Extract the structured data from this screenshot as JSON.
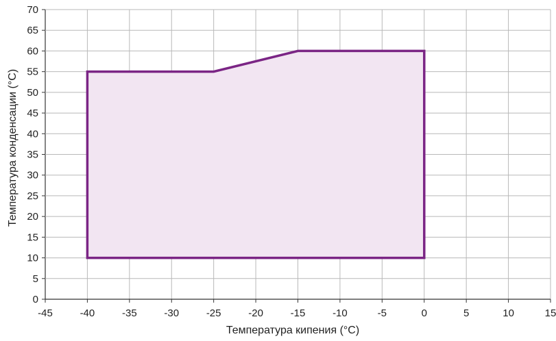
{
  "chart_data": {
    "type": "area",
    "xlabel": "Температура кипения (°C)",
    "ylabel": "Температура конденсации (°C)",
    "xlim": [
      -45,
      15
    ],
    "ylim": [
      0,
      70
    ],
    "x_ticks": [
      -45,
      -40,
      -35,
      -30,
      -25,
      -20,
      -15,
      -10,
      -5,
      0,
      5,
      10,
      15
    ],
    "y_ticks": [
      0,
      5,
      10,
      15,
      20,
      25,
      30,
      35,
      40,
      45,
      50,
      55,
      60,
      65,
      70
    ],
    "grid": true,
    "series": [
      {
        "points": [
          [
            -40,
            10
          ],
          [
            -40,
            55
          ],
          [
            -25,
            55
          ],
          [
            -15,
            60
          ],
          [
            0,
            60
          ],
          [
            0,
            10
          ]
        ],
        "color": "#7b2585",
        "fill": "#f2e5f2"
      }
    ]
  }
}
